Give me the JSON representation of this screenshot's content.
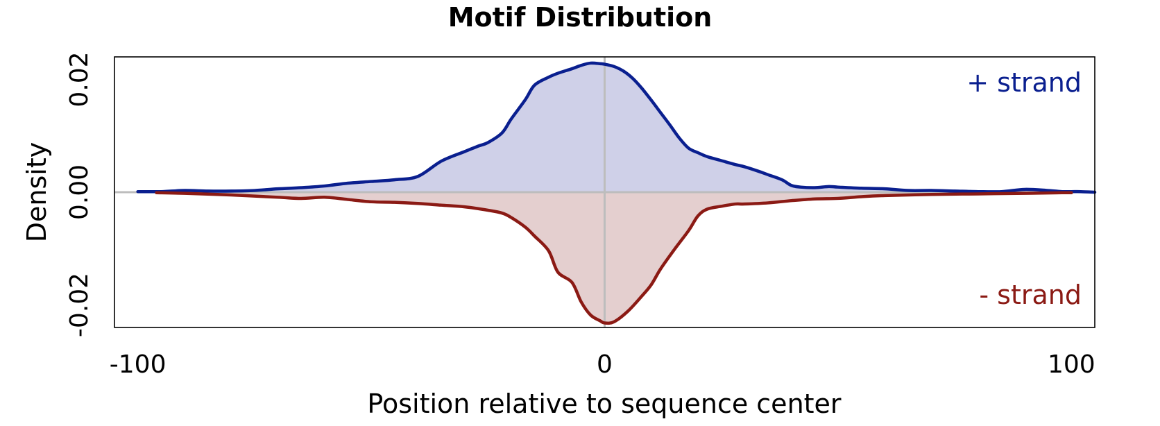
{
  "chart_data": {
    "type": "area",
    "title": "Motif Distribution",
    "xlabel": "Position relative to sequence center",
    "ylabel": "Density",
    "xlim": [
      -105,
      105
    ],
    "ylim": [
      -0.024,
      0.024
    ],
    "x_ticks": [
      -100,
      0,
      100
    ],
    "x_tick_labels": [
      "-100",
      "0",
      "100"
    ],
    "y_ticks": [
      -0.02,
      0.0,
      0.02
    ],
    "y_tick_labels": [
      "-0.02",
      "0.00",
      "0.02"
    ],
    "reference_lines": {
      "x": 0,
      "y": 0
    },
    "grid": false,
    "series": [
      {
        "name": "+ strand",
        "label_position": "top-right",
        "line_color": "#0a1f8f",
        "fill_color": "#cfd0e8",
        "x": [
          -100,
          -95,
          -90,
          -85,
          -80,
          -75,
          -70,
          -65,
          -60,
          -55,
          -50,
          -45,
          -40,
          -35,
          -30,
          -27,
          -25,
          -22,
          -20,
          -17,
          -15,
          -12,
          -10,
          -7,
          -5,
          -3,
          -1,
          0,
          2,
          4,
          6,
          8,
          10,
          12,
          14,
          16,
          18,
          20,
          22,
          25,
          28,
          30,
          33,
          35,
          38,
          40,
          42,
          45,
          48,
          50,
          55,
          60,
          65,
          70,
          75,
          80,
          85,
          90,
          95,
          98,
          100,
          102,
          105
        ],
        "values": [
          0.0001,
          0.0001,
          0.0003,
          0.0002,
          0.0002,
          0.0003,
          0.0006,
          0.0008,
          0.0011,
          0.0016,
          0.0019,
          0.0022,
          0.0028,
          0.0055,
          0.0072,
          0.0082,
          0.0088,
          0.0105,
          0.013,
          0.0164,
          0.019,
          0.0204,
          0.0211,
          0.0219,
          0.0225,
          0.0229,
          0.0228,
          0.0227,
          0.0223,
          0.0215,
          0.0202,
          0.0184,
          0.0163,
          0.0141,
          0.0119,
          0.0096,
          0.0078,
          0.007,
          0.0063,
          0.0056,
          0.0049,
          0.0045,
          0.0037,
          0.0031,
          0.0022,
          0.0012,
          0.0009,
          0.0008,
          0.001,
          0.0009,
          0.0007,
          0.0006,
          0.0003,
          0.0003,
          0.0002,
          0.0001,
          0.0001,
          0.0005,
          0.0003,
          0.0001,
          0.0001,
          0.0001,
          0.0
        ]
      },
      {
        "name": "- strand",
        "label_position": "bottom-right",
        "line_color": "#8b1a14",
        "fill_color": "#e4cfcf",
        "x": [
          -96,
          -90,
          -80,
          -70,
          -65,
          -60,
          -55,
          -50,
          -45,
          -40,
          -35,
          -30,
          -25,
          -22,
          -20,
          -17,
          -15,
          -12,
          -10,
          -7,
          -5,
          -3,
          -1,
          0,
          2,
          5,
          8,
          10,
          12,
          15,
          18,
          20,
          22,
          25,
          28,
          30,
          35,
          40,
          45,
          50,
          55,
          60,
          70,
          80,
          90,
          98,
          100
        ],
        "values": [
          -0.0001,
          -0.0002,
          -0.0005,
          -0.0009,
          -0.0011,
          -0.0009,
          -0.0013,
          -0.0017,
          -0.0018,
          -0.002,
          -0.0023,
          -0.0026,
          -0.0032,
          -0.0037,
          -0.0045,
          -0.0062,
          -0.0078,
          -0.0104,
          -0.0142,
          -0.016,
          -0.0195,
          -0.0218,
          -0.0228,
          -0.0232,
          -0.023,
          -0.0211,
          -0.0184,
          -0.0164,
          -0.0136,
          -0.0101,
          -0.0068,
          -0.0042,
          -0.003,
          -0.0025,
          -0.0021,
          -0.0021,
          -0.0019,
          -0.0015,
          -0.0012,
          -0.0011,
          -0.0008,
          -0.0006,
          -0.0004,
          -0.0003,
          -0.0002,
          -0.0001,
          -0.0001
        ]
      }
    ]
  }
}
